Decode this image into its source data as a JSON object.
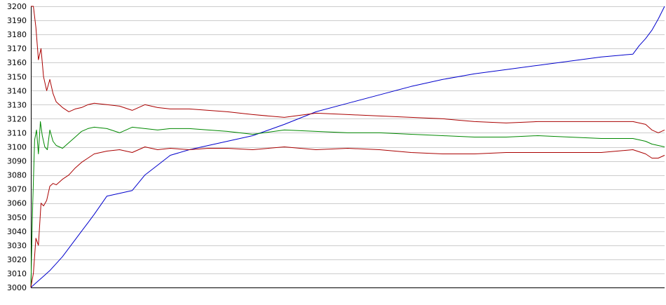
{
  "chart_data": {
    "type": "line",
    "title": "",
    "xlabel": "",
    "ylabel": "",
    "xlim": [
      0,
      100
    ],
    "ylim": [
      3000,
      3200
    ],
    "grid": true,
    "legend": "none",
    "y_ticks": [
      3000,
      3010,
      3020,
      3030,
      3040,
      3050,
      3060,
      3070,
      3080,
      3090,
      3100,
      3110,
      3120,
      3130,
      3140,
      3150,
      3160,
      3170,
      3180,
      3190,
      3200
    ],
    "series": [
      {
        "color": "#0000cc",
        "x": [
          0,
          1,
          2,
          3,
          4,
          5,
          6,
          7,
          8,
          9,
          10,
          12,
          14,
          16,
          18,
          20,
          22,
          25,
          28,
          31,
          35,
          40,
          45,
          50,
          55,
          60,
          65,
          70,
          75,
          80,
          85,
          90,
          95,
          96,
          97,
          98,
          99,
          100
        ],
        "values": [
          3000,
          3004,
          3008,
          3012,
          3017,
          3022,
          3028,
          3034,
          3040,
          3046,
          3052,
          3065,
          3067,
          3069,
          3080,
          3087,
          3094,
          3098,
          3101,
          3104,
          3108,
          3116,
          3125,
          3131,
          3137,
          3143,
          3148,
          3152,
          3155,
          3158,
          3161,
          3164,
          3166,
          3172,
          3177,
          3183,
          3191,
          3200
        ]
      },
      {
        "color": "#aa0000",
        "x": [
          0,
          0.4,
          0.8,
          1.2,
          1.6,
          2,
          2.5,
          3,
          3.5,
          4,
          5,
          6,
          7,
          8,
          9,
          10,
          12,
          14,
          16,
          18,
          20,
          22,
          25,
          28,
          31,
          35,
          40,
          45,
          50,
          55,
          60,
          65,
          70,
          75,
          80,
          85,
          90,
          95,
          97,
          98,
          99,
          100
        ],
        "values": [
          3200,
          3200,
          3185,
          3162,
          3170,
          3150,
          3140,
          3148,
          3138,
          3132,
          3128,
          3125,
          3127,
          3128,
          3130,
          3131,
          3130,
          3129,
          3126,
          3130,
          3128,
          3127,
          3127,
          3126,
          3125,
          3123,
          3121,
          3124,
          3123,
          3122,
          3121,
          3120,
          3118,
          3117,
          3118,
          3118,
          3118,
          3118,
          3116,
          3112,
          3110,
          3112
        ]
      },
      {
        "color": "#008800",
        "x": [
          0,
          0.3,
          0.6,
          0.9,
          1.2,
          1.5,
          1.8,
          2.2,
          2.6,
          3,
          3.5,
          4,
          5,
          6,
          7,
          8,
          9,
          10,
          12,
          14,
          16,
          18,
          20,
          22,
          25,
          28,
          31,
          35,
          40,
          45,
          50,
          55,
          60,
          65,
          70,
          75,
          80,
          85,
          90,
          95,
          97,
          98,
          99,
          100
        ],
        "values": [
          3000,
          3060,
          3105,
          3112,
          3095,
          3118,
          3108,
          3100,
          3098,
          3112,
          3104,
          3101,
          3099,
          3103,
          3107,
          3111,
          3113,
          3114,
          3113,
          3110,
          3114,
          3113,
          3112,
          3113,
          3113,
          3112,
          3111,
          3109,
          3112,
          3111,
          3110,
          3110,
          3109,
          3108,
          3107,
          3107,
          3108,
          3107,
          3106,
          3106,
          3104,
          3102,
          3101,
          3100
        ]
      },
      {
        "color": "#aa0000",
        "x": [
          0,
          0.4,
          0.8,
          1.2,
          1.6,
          2,
          2.5,
          3,
          3.5,
          4,
          5,
          6,
          7,
          8,
          9,
          10,
          12,
          14,
          16,
          18,
          20,
          22,
          25,
          28,
          31,
          35,
          40,
          45,
          50,
          55,
          60,
          65,
          70,
          75,
          80,
          85,
          90,
          95,
          97,
          98,
          99,
          100
        ],
        "values": [
          3000,
          3010,
          3035,
          3030,
          3060,
          3058,
          3062,
          3072,
          3074,
          3073,
          3077,
          3080,
          3085,
          3089,
          3092,
          3095,
          3097,
          3098,
          3096,
          3100,
          3098,
          3099,
          3098,
          3099,
          3099,
          3098,
          3100,
          3098,
          3099,
          3098,
          3096,
          3095,
          3095,
          3096,
          3096,
          3096,
          3096,
          3098,
          3095,
          3092,
          3092,
          3094
        ]
      }
    ]
  }
}
